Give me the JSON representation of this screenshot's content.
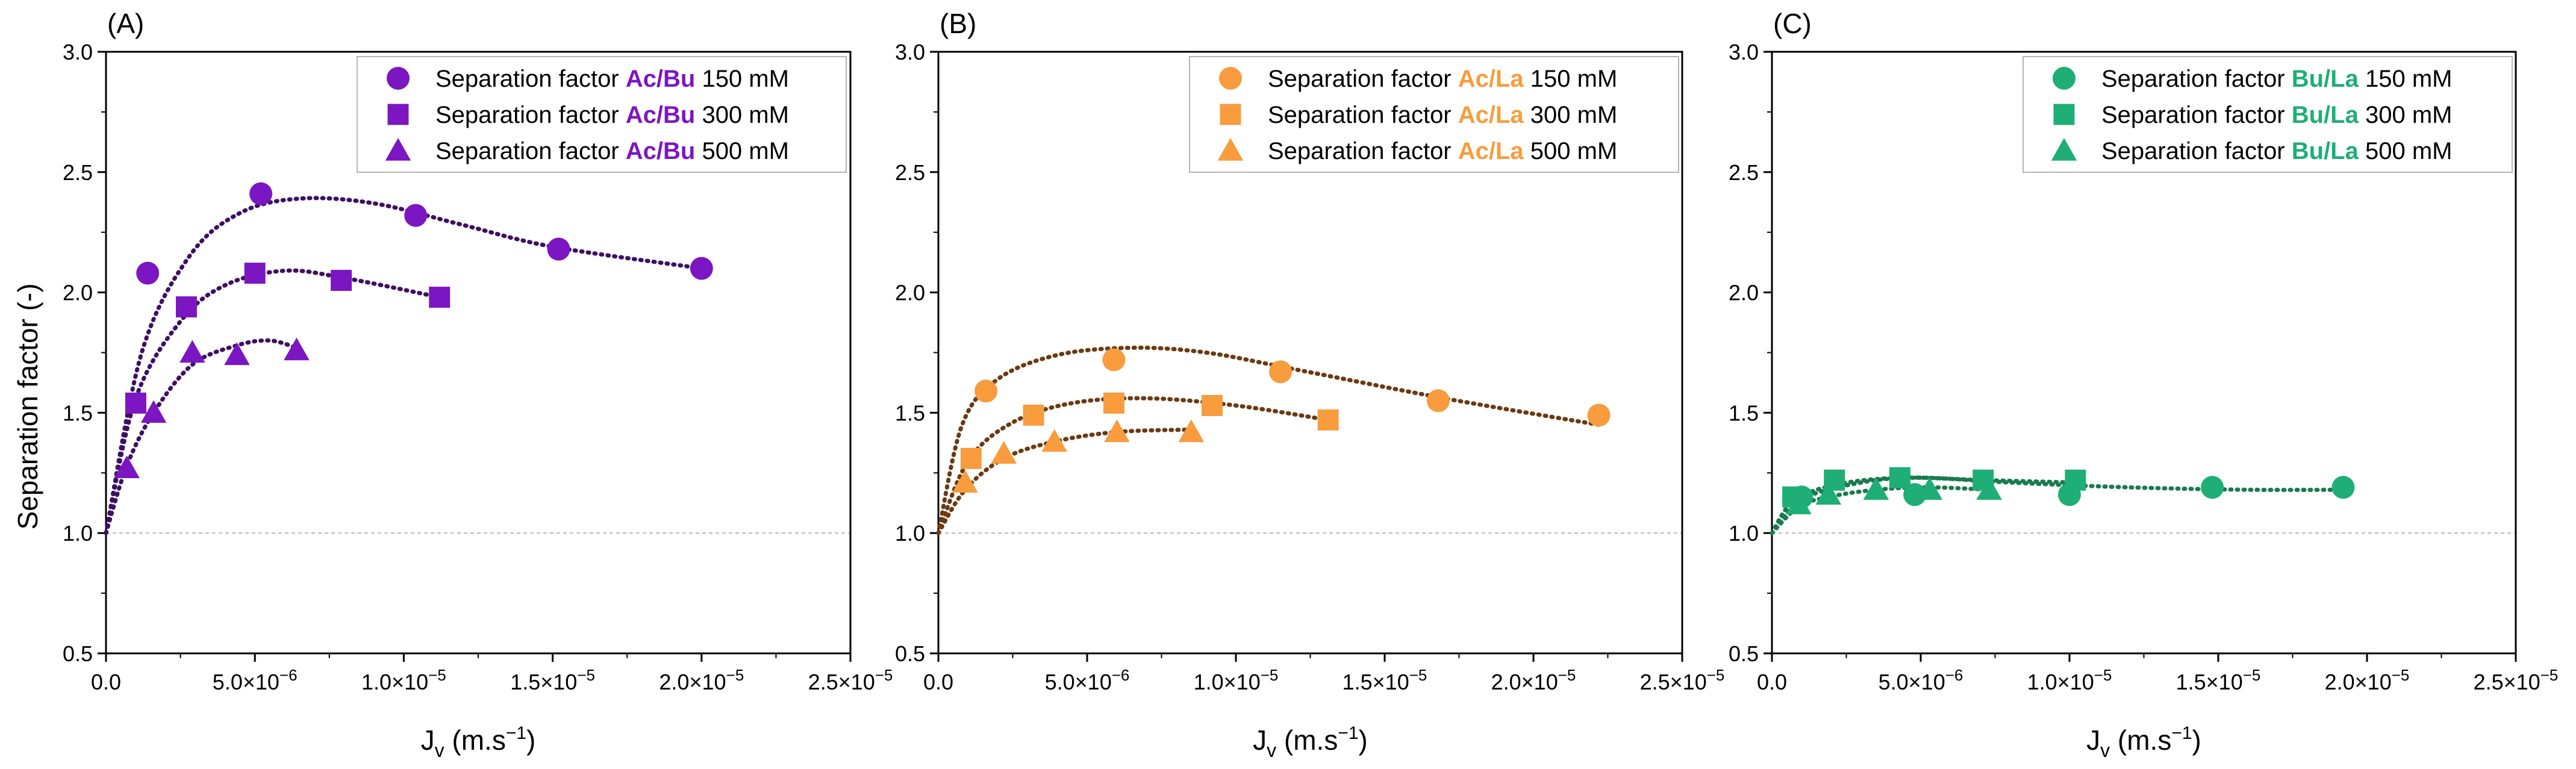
{
  "figure": {
    "y_axis_title": "Separation factor (-)",
    "x_axis_title": {
      "base": "J",
      "sub": "v",
      "unit_open": " (m.s",
      "sup": "−1",
      "unit_close": ")"
    },
    "x_ticks": [
      {
        "base": "0.0",
        "mant": "",
        "exp": ""
      },
      {
        "base": "",
        "mant": "5.0×10",
        "exp": "−6"
      },
      {
        "base": "",
        "mant": "1.0×10",
        "exp": "−5"
      },
      {
        "base": "",
        "mant": "1.5×10",
        "exp": "−5"
      },
      {
        "base": "",
        "mant": "2.0×10",
        "exp": "−5"
      },
      {
        "base": "",
        "mant": "2.5×10",
        "exp": "−5"
      }
    ],
    "y_ticks": [
      "0.5",
      "1.0",
      "1.5",
      "2.0",
      "2.5",
      "3.0"
    ],
    "legend_prefix": "Separation factor"
  },
  "chart_data": [
    {
      "panel_label": "(A)",
      "type": "scatter",
      "color": "#7B16C2",
      "fit_color": "#3E0F63",
      "pair": "Ac/Bu",
      "xlim": [
        0,
        2.5e-05
      ],
      "ylim": [
        0.5,
        3.0
      ],
      "reference_line": 1.0,
      "series": [
        {
          "name": "Separation factor Ac/Bu 150 mM",
          "conc": "150 mM",
          "marker": "circle",
          "x": [
            1.4e-06,
            5.2e-06,
            1.04e-05,
            1.52e-05,
            2e-05
          ],
          "y": [
            2.08,
            2.41,
            2.32,
            2.18,
            2.1
          ],
          "fit": {
            "type": "smooth",
            "points": [
              [
                0,
                1.0
              ],
              [
                1.2e-06,
                1.75
              ],
              [
                2.8e-06,
                2.15
              ],
              [
                4.5e-06,
                2.33
              ],
              [
                6.5e-06,
                2.39
              ],
              [
                9e-06,
                2.37
              ],
              [
                1.2e-05,
                2.28
              ],
              [
                1.5e-05,
                2.19
              ],
              [
                2e-05,
                2.1
              ]
            ]
          }
        },
        {
          "name": "Separation factor Ac/Bu 300 mM",
          "conc": "300 mM",
          "marker": "square",
          "x": [
            1e-06,
            2.7e-06,
            5e-06,
            7.9e-06,
            1.12e-05
          ],
          "y": [
            1.54,
            1.94,
            2.08,
            2.05,
            1.98
          ],
          "fit": {
            "type": "smooth",
            "points": [
              [
                0,
                1.0
              ],
              [
                1e-06,
                1.56
              ],
              [
                2.5e-06,
                1.88
              ],
              [
                4e-06,
                2.03
              ],
              [
                6e-06,
                2.09
              ],
              [
                8e-06,
                2.06
              ],
              [
                1.12e-05,
                1.98
              ]
            ]
          }
        },
        {
          "name": "Separation factor Ac/Bu 500 mM",
          "conc": "500 mM",
          "marker": "triangle",
          "x": [
            7e-07,
            1.6e-06,
            2.9e-06,
            4.4e-06,
            6.4e-06
          ],
          "y": [
            1.27,
            1.5,
            1.75,
            1.74,
            1.76
          ],
          "fit": {
            "type": "smooth",
            "points": [
              [
                0,
                1.0
              ],
              [
                7e-07,
                1.28
              ],
              [
                1.6e-06,
                1.5
              ],
              [
                2.9e-06,
                1.7
              ],
              [
                4.4e-06,
                1.78
              ],
              [
                5.5e-06,
                1.8
              ],
              [
                6.4e-06,
                1.77
              ]
            ]
          }
        }
      ]
    },
    {
      "panel_label": "(B)",
      "type": "scatter",
      "color": "#F89C3D",
      "fit_color": "#6B3A12",
      "pair": "Ac/La",
      "xlim": [
        0,
        2.5e-05
      ],
      "ylim": [
        0.5,
        3.0
      ],
      "reference_line": 1.0,
      "series": [
        {
          "name": "Separation factor Ac/La 150 mM",
          "conc": "150 mM",
          "marker": "circle",
          "x": [
            1.6e-06,
            5.9e-06,
            1.15e-05,
            1.68e-05,
            2.22e-05
          ],
          "y": [
            1.59,
            1.72,
            1.67,
            1.55,
            1.49
          ],
          "fit": {
            "type": "smooth",
            "points": [
              [
                0,
                1.0
              ],
              [
                8e-07,
                1.45
              ],
              [
                2e-06,
                1.64
              ],
              [
                4e-06,
                1.74
              ],
              [
                6.5e-06,
                1.77
              ],
              [
                9e-06,
                1.75
              ],
              [
                1.2e-05,
                1.68
              ],
              [
                1.7e-05,
                1.56
              ],
              [
                2.22e-05,
                1.45
              ]
            ]
          }
        },
        {
          "name": "Separation factor Ac/La 300 mM",
          "conc": "300 mM",
          "marker": "square",
          "x": [
            1.1e-06,
            3.2e-06,
            5.9e-06,
            9.2e-06,
            1.31e-05
          ],
          "y": [
            1.31,
            1.49,
            1.54,
            1.53,
            1.47
          ],
          "fit": {
            "type": "smooth",
            "points": [
              [
                0,
                1.0
              ],
              [
                1e-06,
                1.3
              ],
              [
                2.5e-06,
                1.46
              ],
              [
                4.5e-06,
                1.54
              ],
              [
                7e-06,
                1.56
              ],
              [
                1e-05,
                1.53
              ],
              [
                1.31e-05,
                1.47
              ]
            ]
          }
        },
        {
          "name": "Separation factor Ac/La 500 mM",
          "conc": "500 mM",
          "marker": "triangle",
          "x": [
            9e-07,
            2.2e-06,
            3.9e-06,
            6e-06,
            8.5e-06
          ],
          "y": [
            1.21,
            1.33,
            1.38,
            1.42,
            1.42
          ],
          "fit": {
            "type": "smooth",
            "points": [
              [
                0,
                1.0
              ],
              [
                9e-07,
                1.18
              ],
              [
                2.2e-06,
                1.31
              ],
              [
                3.9e-06,
                1.38
              ],
              [
                6e-06,
                1.42
              ],
              [
                8.5e-06,
                1.43
              ]
            ]
          }
        }
      ]
    },
    {
      "panel_label": "(C)",
      "type": "scatter",
      "color": "#1EAE76",
      "fit_color": "#1A7A50",
      "pair": "Bu/La",
      "xlim": [
        0,
        2.5e-05
      ],
      "ylim": [
        0.5,
        3.0
      ],
      "reference_line": 1.0,
      "series": [
        {
          "name": "Separation factor Bu/La 150 mM",
          "conc": "150 mM",
          "marker": "circle",
          "x": [
            1e-06,
            4.8e-06,
            1e-05,
            1.48e-05,
            1.92e-05
          ],
          "y": [
            1.15,
            1.16,
            1.16,
            1.19,
            1.19
          ],
          "fit": {
            "type": "smooth",
            "points": [
              [
                0,
                1.0
              ],
              [
                1e-06,
                1.14
              ],
              [
                3e-06,
                1.21
              ],
              [
                5e-06,
                1.23
              ],
              [
                8e-06,
                1.21
              ],
              [
                1.2e-05,
                1.19
              ],
              [
                1.6e-05,
                1.18
              ],
              [
                1.92e-05,
                1.18
              ]
            ]
          }
        },
        {
          "name": "Separation factor Bu/La 300 mM",
          "conc": "300 mM",
          "marker": "square",
          "x": [
            7e-07,
            2.1e-06,
            4.3e-06,
            7.1e-06,
            1.02e-05
          ],
          "y": [
            1.15,
            1.22,
            1.23,
            1.22,
            1.22
          ],
          "fit": {
            "type": "smooth",
            "points": [
              [
                0,
                1.0
              ],
              [
                7e-07,
                1.13
              ],
              [
                2.1e-06,
                1.2
              ],
              [
                4.3e-06,
                1.23
              ],
              [
                7.1e-06,
                1.22
              ],
              [
                1.02e-05,
                1.21
              ]
            ]
          }
        },
        {
          "name": "Separation factor Bu/La 500 mM",
          "conc": "500 mM",
          "marker": "triangle",
          "x": [
            9e-07,
            1.9e-06,
            3.5e-06,
            5.3e-06,
            7.3e-06
          ],
          "y": [
            1.12,
            1.16,
            1.18,
            1.18,
            1.18
          ],
          "fit": {
            "type": "smooth",
            "points": [
              [
                0,
                1.0
              ],
              [
                9e-07,
                1.11
              ],
              [
                1.9e-06,
                1.15
              ],
              [
                3.5e-06,
                1.18
              ],
              [
                5.3e-06,
                1.19
              ],
              [
                7.3e-06,
                1.18
              ]
            ]
          }
        }
      ]
    }
  ]
}
